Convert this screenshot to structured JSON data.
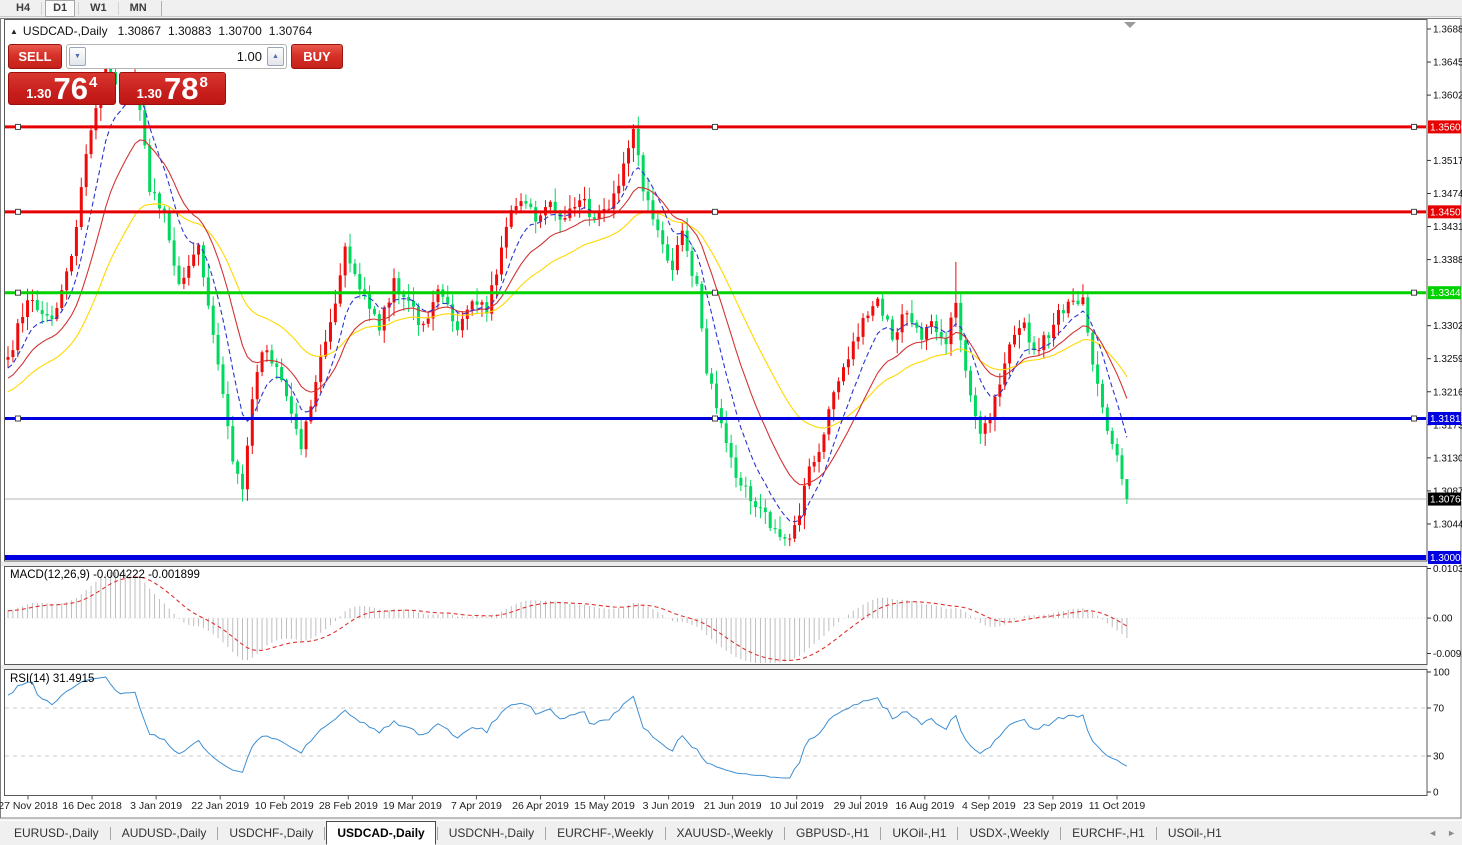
{
  "toolbar": {
    "timeframes": [
      "H4",
      "D1",
      "W1",
      "MN"
    ],
    "active_timeframe": "D1"
  },
  "chart_header": {
    "collapse_icon": "▲",
    "symbol_label": "USDCAD-,Daily",
    "ohlc": {
      "open": "1.30867",
      "high": "1.30883",
      "low": "1.30700",
      "close": "1.30764"
    }
  },
  "trade_panel": {
    "sell_label": "SELL",
    "buy_label": "BUY",
    "volume": "1.00",
    "sell_price": {
      "prefix": "1.30",
      "big": "76",
      "sup": "4"
    },
    "buy_price": {
      "prefix": "1.30",
      "big": "78",
      "sup": "8"
    }
  },
  "price_axis": {
    "ticks": [
      "1.36880",
      "1.36450",
      "1.36020",
      "1.35170",
      "1.34740",
      "1.34310",
      "1.33880",
      "1.33020",
      "1.32590",
      "1.32160",
      "1.31730",
      "1.31300",
      "1.30870",
      "1.30440"
    ],
    "current_price_label": {
      "value": "1.30764",
      "bg": "#000000",
      "fg": "#ffffff"
    }
  },
  "macd_panel": {
    "label": "MACD(12,26,9) -0.004222 -0.001899",
    "axis_labels": [
      "0.010311",
      "0.00",
      "-0.009203"
    ]
  },
  "rsi_panel": {
    "label": "RSI(14) 31.4915",
    "axis_labels": [
      "100",
      "70",
      "30",
      "0"
    ]
  },
  "date_axis": {
    "labels": [
      "27 Nov 2018",
      "16 Dec 2018",
      "3 Jan 2019",
      "22 Jan 2019",
      "10 Feb 2019",
      "28 Feb 2019",
      "19 Mar 2019",
      "7 Apr 2019",
      "26 Apr 2019",
      "15 May 2019",
      "3 Jun 2019",
      "21 Jun 2019",
      "10 Jul 2019",
      "29 Jul 2019",
      "16 Aug 2019",
      "4 Sep 2019",
      "23 Sep 2019",
      "11 Oct 2019"
    ]
  },
  "tabs": {
    "items": [
      "EURUSD-,Daily",
      "AUDUSD-,Daily",
      "USDCHF-,Daily",
      "USDCAD-,Daily",
      "USDCNH-,Daily",
      "EURCHF-,Weekly",
      "XAUUSD-,Weekly",
      "GBPUSD-,H1",
      "UKOil-,H1",
      "USDX-,Weekly",
      "EURCHF-,H1",
      "USOil-,H1"
    ],
    "active": "USDCAD-,Daily",
    "scroll_left_icon": "◄",
    "scroll_right_icon": "►"
  },
  "chart_data": {
    "type": "candlestick",
    "title": "USDCAD-,Daily",
    "y_range": [
      1.29984,
      1.36984
    ],
    "num_candles": 230,
    "x_axis_dates": [
      "27 Nov 2018",
      "16 Dec 2018",
      "3 Jan 2019",
      "22 Jan 2019",
      "10 Feb 2019",
      "28 Feb 2019",
      "19 Mar 2019",
      "7 Apr 2019",
      "26 Apr 2019",
      "15 May 2019",
      "3 Jun 2019",
      "21 Jun 2019",
      "10 Jul 2019",
      "29 Jul 2019",
      "16 Aug 2019",
      "4 Sep 2019",
      "23 Sep 2019",
      "11 Oct 2019"
    ],
    "last_ohlc": {
      "open": 1.30867,
      "high": 1.30883,
      "low": 1.307,
      "close": 1.30764
    },
    "close_path_anchors": [
      [
        0,
        1.3255
      ],
      [
        4,
        1.334
      ],
      [
        9,
        1.331
      ],
      [
        13,
        1.339
      ],
      [
        17,
        1.356
      ],
      [
        20,
        1.365
      ],
      [
        23,
        1.36
      ],
      [
        26,
        1.363
      ],
      [
        29,
        1.348
      ],
      [
        32,
        1.3445
      ],
      [
        35,
        1.335
      ],
      [
        39,
        1.34
      ],
      [
        42,
        1.329
      ],
      [
        46,
        1.313
      ],
      [
        48,
        1.309
      ],
      [
        50,
        1.32
      ],
      [
        52,
        1.327
      ],
      [
        55,
        1.325
      ],
      [
        58,
        1.319
      ],
      [
        60,
        1.314
      ],
      [
        63,
        1.323
      ],
      [
        67,
        1.333
      ],
      [
        69,
        1.341
      ],
      [
        70,
        1.339
      ],
      [
        73,
        1.334
      ],
      [
        76,
        1.33
      ],
      [
        79,
        1.336
      ],
      [
        82,
        1.333
      ],
      [
        85,
        1.33
      ],
      [
        88,
        1.335
      ],
      [
        92,
        1.33
      ],
      [
        95,
        1.334
      ],
      [
        98,
        1.332
      ],
      [
        101,
        1.34
      ],
      [
        103,
        1.346
      ],
      [
        105,
        1.347
      ],
      [
        108,
        1.344
      ],
      [
        111,
        1.346
      ],
      [
        114,
        1.344
      ],
      [
        117,
        1.347
      ],
      [
        120,
        1.344
      ],
      [
        123,
        1.345
      ],
      [
        126,
        1.351
      ],
      [
        128,
        1.3555
      ],
      [
        130,
        1.348
      ],
      [
        133,
        1.342
      ],
      [
        136,
        1.338
      ],
      [
        138,
        1.342
      ],
      [
        141,
        1.335
      ],
      [
        143,
        1.324
      ],
      [
        146,
        1.318
      ],
      [
        149,
        1.311
      ],
      [
        152,
        1.3075
      ],
      [
        156,
        1.3044
      ],
      [
        159,
        1.303
      ],
      [
        161,
        1.3035
      ],
      [
        164,
        1.3115
      ],
      [
        167,
        1.316
      ],
      [
        169,
        1.3215
      ],
      [
        172,
        1.326
      ],
      [
        175,
        1.3305
      ],
      [
        178,
        1.333
      ],
      [
        181,
        1.329
      ],
      [
        184,
        1.332
      ],
      [
        187,
        1.329
      ],
      [
        189,
        1.33
      ],
      [
        192,
        1.328
      ],
      [
        194,
        1.333
      ],
      [
        196,
        1.324
      ],
      [
        199,
        1.316
      ],
      [
        201,
        1.318
      ],
      [
        203,
        1.323
      ],
      [
        206,
        1.329
      ],
      [
        208,
        1.33
      ],
      [
        210,
        1.327
      ],
      [
        213,
        1.329
      ],
      [
        215,
        1.332
      ],
      [
        218,
        1.333
      ],
      [
        220,
        1.334
      ],
      [
        222,
        1.325
      ],
      [
        223,
        1.322
      ],
      [
        225,
        1.316
      ],
      [
        227,
        1.313
      ],
      [
        228,
        1.3105
      ],
      [
        229,
        1.30764
      ]
    ],
    "candle_colors": {
      "bull": "#ef0b0b",
      "bear": "#00d85e"
    },
    "levels": [
      {
        "value": "1.35606",
        "price": 1.35606,
        "color": "#e60000",
        "width": 3,
        "handles": true
      },
      {
        "value": "1.34501",
        "price": 1.34501,
        "color": "#e60000",
        "width": 3,
        "handles": true
      },
      {
        "value": "1.33449",
        "price": 1.33449,
        "color": "#00d200",
        "width": 3,
        "handles": true
      },
      {
        "value": "1.31812",
        "price": 1.31812,
        "color": "#0000e0",
        "width": 3,
        "handles": true
      },
      {
        "value": "1.30004",
        "price": 1.30004,
        "color": "#0000e0",
        "width": 5,
        "handles": false
      }
    ],
    "bid_line": {
      "price": 1.30764,
      "color": "#b4b4b4"
    },
    "moving_averages": [
      {
        "name": "fast",
        "period": 8,
        "color": "#2b35cf",
        "style": "dashed"
      },
      {
        "name": "medium",
        "period": 17,
        "color": "#d23434",
        "style": "solid"
      },
      {
        "name": "slow",
        "period": 34,
        "color": "#ffd800",
        "style": "solid"
      }
    ],
    "indicators": [
      {
        "name": "MACD",
        "params": [
          12,
          26,
          9
        ],
        "value": -0.004222,
        "signal": -0.001899,
        "scale": {
          "max": 0.010311,
          "min": -0.009203
        },
        "histogram_color": "#bdbdbd",
        "signal_color": "#e03232"
      },
      {
        "name": "RSI",
        "params": [
          14
        ],
        "value": 31.4915,
        "levels": [
          70,
          30
        ],
        "scale": [
          0,
          100
        ],
        "line_color": "#3f8fd2"
      }
    ]
  }
}
